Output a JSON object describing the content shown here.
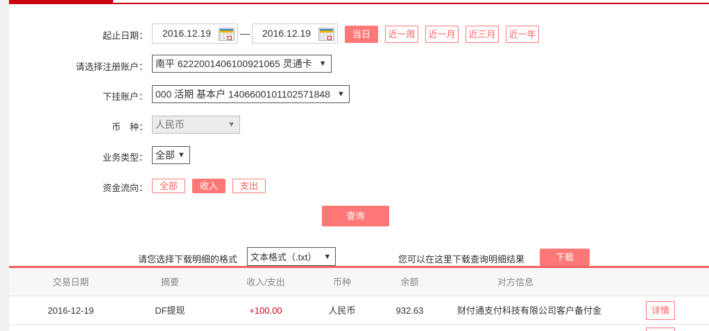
{
  "form": {
    "date_label": "起止日期：",
    "start_date": "2016.12.19",
    "date_sep": "—",
    "end_date": "2016.12.19",
    "quick_ranges": [
      "当日",
      "近一周",
      "近一月",
      "近三月",
      "近一年"
    ],
    "account_label": "请选择注册账户：",
    "account_value": "南平 6222001406100921065 灵通卡",
    "sub_account_label": "下挂账户：",
    "sub_account_value": "000 活期 基本户 1406600101102571848",
    "currency_label": "币　种：",
    "currency_value": "人民币",
    "biz_type_label": "业务类型：",
    "biz_type_value": "全部",
    "flow_label": "资金流向：",
    "flow_options": [
      "全部",
      "收入",
      "支出"
    ],
    "query_label": "查询"
  },
  "download": {
    "format_label": "请您选择下载明细的格式",
    "format_value": "文本格式（.txt）",
    "hint": "您可以在这里下载查询明细结果",
    "button": "下载"
  },
  "table": {
    "headers": [
      "交易日期",
      "摘要",
      "收入/支出",
      "币种",
      "余额",
      "对方信息"
    ],
    "rows": [
      {
        "date": "2016-12-19",
        "summary": "DF提现",
        "amount": "+100.00",
        "currency": "人民币",
        "balance": "932.63",
        "counterparty": "财付通支付科技有限公司客户备付金",
        "action": "详情"
      }
    ]
  },
  "colors": {
    "accent": "#ff7878",
    "brand_red": "#c9000f",
    "amount_income": "#d0021b"
  }
}
